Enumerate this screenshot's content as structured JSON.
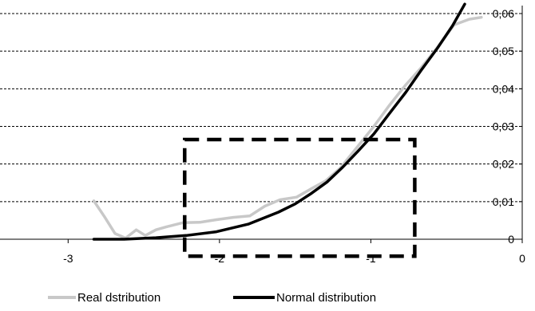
{
  "chart_data": {
    "type": "line",
    "title": "",
    "xlabel": "",
    "ylabel": "",
    "xlim": [
      -3.45,
      0
    ],
    "ylim": [
      0,
      0.06
    ],
    "x_ticks": [
      -3,
      -2,
      -1,
      0
    ],
    "x_tick_labels": [
      "-3",
      "-2",
      "-1",
      "0"
    ],
    "y_ticks": [
      0,
      0.01,
      0.02,
      0.03,
      0.04,
      0.05,
      0.06
    ],
    "y_tick_labels": [
      "0",
      "0,01",
      "0,02",
      "0,03",
      "0,04",
      "0,05",
      "0,06"
    ],
    "y_axis_position": "right",
    "grid": "horizontal dashed",
    "legend_position": "bottom",
    "series": [
      {
        "name": "Real distribution",
        "color": "#c8c8c8",
        "x": [
          -2.83,
          -2.76,
          -2.69,
          -2.62,
          -2.55,
          -2.49,
          -2.42,
          -2.35,
          -2.24,
          -2.13,
          -2.02,
          -1.91,
          -1.8,
          -1.7,
          -1.6,
          -1.49,
          -1.39,
          -1.3,
          -1.2,
          -1.09,
          -0.98,
          -0.88,
          -0.77,
          -0.67,
          -0.56,
          -0.45,
          -0.35,
          -0.27
        ],
        "y": [
          0.0102,
          0.006,
          0.0015,
          0.0003,
          0.0025,
          0.001,
          0.0025,
          0.0033,
          0.0044,
          0.0045,
          0.0052,
          0.0058,
          0.0062,
          0.0088,
          0.0105,
          0.0112,
          0.0135,
          0.0155,
          0.019,
          0.0245,
          0.03,
          0.0355,
          0.041,
          0.0455,
          0.051,
          0.057,
          0.0585,
          0.059
        ]
      },
      {
        "name": "Normal distribution",
        "color": "#000000",
        "x": [
          -2.83,
          -2.63,
          -2.42,
          -2.22,
          -2.02,
          -1.81,
          -1.61,
          -1.5,
          -1.4,
          -1.29,
          -1.19,
          -1.09,
          -0.98,
          -0.88,
          -0.77,
          -0.67,
          -0.56,
          -0.46,
          -0.38
        ],
        "y": [
          0,
          0,
          0.0004,
          0.001,
          0.002,
          0.004,
          0.0072,
          0.0094,
          0.012,
          0.0152,
          0.019,
          0.0232,
          0.028,
          0.0333,
          0.039,
          0.0448,
          0.0508,
          0.0568,
          0.0625
        ]
      }
    ],
    "annotations": [
      {
        "type": "dashed-rectangle",
        "x_range": [
          -2.23,
          -0.71
        ],
        "y_range": [
          -0.0045,
          0.0265
        ]
      }
    ],
    "legend_entries": [
      "Real dstribution",
      "Normal distribution"
    ]
  }
}
